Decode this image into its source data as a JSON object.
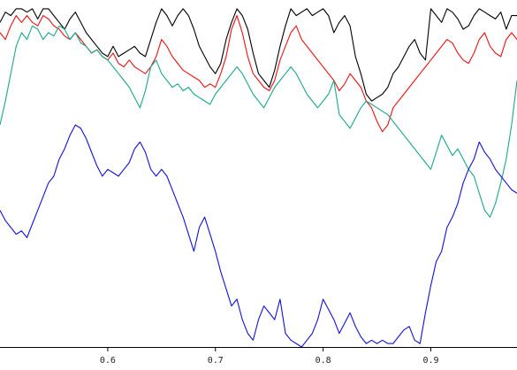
{
  "chart_data": {
    "type": "line",
    "title": "",
    "xlabel": "",
    "ylabel": "",
    "xlim": [
      0.5,
      0.98
    ],
    "ylim": [
      0.0,
      1.0
    ],
    "x_ticks": [
      0.6,
      0.7,
      0.8,
      0.9
    ],
    "x_tick_labels": [
      "0.6",
      "0.7",
      "0.8",
      "0.9"
    ],
    "grid": false,
    "legend": "none",
    "series": [
      {
        "color": "#000000",
        "x": [
          0.5,
          0.505,
          0.51,
          0.515,
          0.52,
          0.525,
          0.53,
          0.535,
          0.54,
          0.545,
          0.55,
          0.555,
          0.56,
          0.565,
          0.57,
          0.575,
          0.58,
          0.585,
          0.59,
          0.595,
          0.6,
          0.605,
          0.61,
          0.615,
          0.62,
          0.625,
          0.63,
          0.635,
          0.64,
          0.645,
          0.65,
          0.655,
          0.66,
          0.665,
          0.67,
          0.675,
          0.68,
          0.685,
          0.69,
          0.695,
          0.7,
          0.705,
          0.71,
          0.715,
          0.72,
          0.725,
          0.73,
          0.735,
          0.74,
          0.745,
          0.75,
          0.755,
          0.76,
          0.765,
          0.77,
          0.775,
          0.78,
          0.785,
          0.79,
          0.795,
          0.8,
          0.805,
          0.81,
          0.815,
          0.82,
          0.825,
          0.83,
          0.835,
          0.84,
          0.845,
          0.85,
          0.855,
          0.86,
          0.865,
          0.87,
          0.875,
          0.88,
          0.885,
          0.89,
          0.895,
          0.9,
          0.905,
          0.91,
          0.915,
          0.92,
          0.925,
          0.93,
          0.935,
          0.94,
          0.945,
          0.95,
          0.955,
          0.96,
          0.965,
          0.97,
          0.975,
          0.98
        ],
        "values": [
          0.95,
          0.98,
          0.97,
          0.99,
          0.99,
          0.98,
          0.99,
          0.96,
          0.99,
          0.99,
          0.97,
          0.95,
          0.93,
          0.96,
          0.98,
          0.95,
          0.92,
          0.9,
          0.88,
          0.86,
          0.85,
          0.88,
          0.85,
          0.86,
          0.87,
          0.88,
          0.86,
          0.85,
          0.9,
          0.95,
          0.99,
          0.97,
          0.94,
          0.97,
          0.99,
          0.97,
          0.93,
          0.88,
          0.85,
          0.82,
          0.8,
          0.83,
          0.9,
          0.95,
          0.99,
          0.97,
          0.93,
          0.86,
          0.8,
          0.78,
          0.76,
          0.81,
          0.88,
          0.94,
          0.99,
          0.97,
          0.98,
          0.99,
          0.97,
          0.98,
          0.99,
          0.97,
          0.92,
          0.95,
          0.97,
          0.94,
          0.85,
          0.8,
          0.74,
          0.72,
          0.73,
          0.74,
          0.76,
          0.8,
          0.82,
          0.85,
          0.88,
          0.9,
          0.86,
          0.84,
          0.99,
          0.97,
          0.95,
          0.99,
          0.98,
          0.96,
          0.93,
          0.94,
          0.97,
          0.99,
          0.98,
          0.97,
          0.96,
          0.98,
          0.93,
          0.97,
          0.97
        ]
      },
      {
        "color": "#ee1111",
        "x": [
          0.5,
          0.505,
          0.51,
          0.515,
          0.52,
          0.525,
          0.53,
          0.535,
          0.54,
          0.545,
          0.55,
          0.555,
          0.56,
          0.565,
          0.57,
          0.575,
          0.58,
          0.585,
          0.59,
          0.595,
          0.6,
          0.605,
          0.61,
          0.615,
          0.62,
          0.625,
          0.63,
          0.635,
          0.64,
          0.645,
          0.65,
          0.655,
          0.66,
          0.665,
          0.67,
          0.675,
          0.68,
          0.685,
          0.69,
          0.695,
          0.7,
          0.705,
          0.71,
          0.715,
          0.72,
          0.725,
          0.73,
          0.735,
          0.74,
          0.745,
          0.75,
          0.755,
          0.76,
          0.765,
          0.77,
          0.775,
          0.78,
          0.785,
          0.79,
          0.795,
          0.8,
          0.805,
          0.81,
          0.815,
          0.82,
          0.825,
          0.83,
          0.835,
          0.84,
          0.845,
          0.85,
          0.855,
          0.86,
          0.865,
          0.87,
          0.875,
          0.88,
          0.885,
          0.89,
          0.895,
          0.9,
          0.905,
          0.91,
          0.915,
          0.92,
          0.925,
          0.93,
          0.935,
          0.94,
          0.945,
          0.95,
          0.955,
          0.96,
          0.965,
          0.97,
          0.975,
          0.98
        ],
        "values": [
          0.92,
          0.9,
          0.94,
          0.97,
          0.95,
          0.97,
          0.95,
          0.94,
          0.97,
          0.96,
          0.94,
          0.93,
          0.91,
          0.9,
          0.92,
          0.9,
          0.88,
          0.86,
          0.87,
          0.85,
          0.84,
          0.86,
          0.83,
          0.82,
          0.84,
          0.82,
          0.81,
          0.8,
          0.82,
          0.85,
          0.9,
          0.88,
          0.85,
          0.83,
          0.81,
          0.8,
          0.79,
          0.78,
          0.76,
          0.77,
          0.76,
          0.8,
          0.85,
          0.93,
          0.97,
          0.92,
          0.85,
          0.8,
          0.78,
          0.76,
          0.75,
          0.78,
          0.84,
          0.88,
          0.92,
          0.94,
          0.9,
          0.88,
          0.86,
          0.84,
          0.82,
          0.8,
          0.78,
          0.75,
          0.77,
          0.8,
          0.78,
          0.76,
          0.72,
          0.7,
          0.66,
          0.63,
          0.65,
          0.7,
          0.72,
          0.74,
          0.76,
          0.78,
          0.8,
          0.82,
          0.84,
          0.86,
          0.88,
          0.9,
          0.89,
          0.86,
          0.84,
          0.83,
          0.86,
          0.9,
          0.92,
          0.88,
          0.86,
          0.85,
          0.9,
          0.92,
          0.9
        ]
      },
      {
        "color": "#18a88a",
        "x": [
          0.5,
          0.505,
          0.51,
          0.515,
          0.52,
          0.525,
          0.53,
          0.535,
          0.54,
          0.545,
          0.55,
          0.555,
          0.56,
          0.565,
          0.57,
          0.575,
          0.58,
          0.585,
          0.59,
          0.595,
          0.6,
          0.605,
          0.61,
          0.615,
          0.62,
          0.625,
          0.63,
          0.635,
          0.64,
          0.645,
          0.65,
          0.655,
          0.66,
          0.665,
          0.67,
          0.675,
          0.68,
          0.685,
          0.69,
          0.695,
          0.7,
          0.705,
          0.71,
          0.715,
          0.72,
          0.725,
          0.73,
          0.735,
          0.74,
          0.745,
          0.75,
          0.755,
          0.76,
          0.765,
          0.77,
          0.775,
          0.78,
          0.785,
          0.79,
          0.795,
          0.8,
          0.805,
          0.81,
          0.815,
          0.82,
          0.825,
          0.83,
          0.835,
          0.84,
          0.845,
          0.85,
          0.855,
          0.86,
          0.865,
          0.87,
          0.875,
          0.88,
          0.885,
          0.89,
          0.895,
          0.9,
          0.905,
          0.91,
          0.915,
          0.92,
          0.925,
          0.93,
          0.935,
          0.94,
          0.945,
          0.95,
          0.955,
          0.96,
          0.965,
          0.97,
          0.975,
          0.98
        ],
        "values": [
          0.65,
          0.72,
          0.8,
          0.88,
          0.92,
          0.9,
          0.94,
          0.93,
          0.9,
          0.92,
          0.91,
          0.94,
          0.93,
          0.9,
          0.92,
          0.89,
          0.88,
          0.86,
          0.87,
          0.85,
          0.84,
          0.82,
          0.8,
          0.78,
          0.76,
          0.73,
          0.7,
          0.75,
          0.82,
          0.84,
          0.8,
          0.78,
          0.76,
          0.77,
          0.75,
          0.76,
          0.74,
          0.73,
          0.72,
          0.71,
          0.74,
          0.76,
          0.78,
          0.8,
          0.82,
          0.8,
          0.77,
          0.74,
          0.72,
          0.7,
          0.73,
          0.76,
          0.78,
          0.8,
          0.82,
          0.8,
          0.77,
          0.74,
          0.72,
          0.7,
          0.72,
          0.74,
          0.78,
          0.68,
          0.66,
          0.64,
          0.67,
          0.7,
          0.72,
          0.71,
          0.7,
          0.69,
          0.68,
          0.66,
          0.64,
          0.62,
          0.6,
          0.58,
          0.56,
          0.54,
          0.52,
          0.57,
          0.62,
          0.59,
          0.56,
          0.58,
          0.55,
          0.52,
          0.5,
          0.45,
          0.4,
          0.38,
          0.42,
          0.48,
          0.55,
          0.65,
          0.78
        ]
      },
      {
        "color": "#1010dd",
        "x": [
          0.5,
          0.505,
          0.51,
          0.515,
          0.52,
          0.525,
          0.53,
          0.535,
          0.54,
          0.545,
          0.55,
          0.555,
          0.56,
          0.565,
          0.57,
          0.575,
          0.58,
          0.585,
          0.59,
          0.595,
          0.6,
          0.605,
          0.61,
          0.615,
          0.62,
          0.625,
          0.63,
          0.635,
          0.64,
          0.645,
          0.65,
          0.655,
          0.66,
          0.665,
          0.67,
          0.675,
          0.68,
          0.685,
          0.69,
          0.695,
          0.7,
          0.705,
          0.71,
          0.715,
          0.72,
          0.725,
          0.73,
          0.735,
          0.74,
          0.745,
          0.75,
          0.755,
          0.76,
          0.765,
          0.77,
          0.775,
          0.78,
          0.785,
          0.79,
          0.795,
          0.8,
          0.805,
          0.81,
          0.815,
          0.82,
          0.825,
          0.83,
          0.835,
          0.84,
          0.845,
          0.85,
          0.855,
          0.86,
          0.865,
          0.87,
          0.875,
          0.88,
          0.885,
          0.89,
          0.895,
          0.9,
          0.905,
          0.91,
          0.915,
          0.92,
          0.925,
          0.93,
          0.935,
          0.94,
          0.945,
          0.95,
          0.955,
          0.96,
          0.965,
          0.97,
          0.975,
          0.98
        ],
        "values": [
          0.4,
          0.37,
          0.35,
          0.33,
          0.34,
          0.32,
          0.36,
          0.4,
          0.44,
          0.48,
          0.5,
          0.55,
          0.58,
          0.62,
          0.65,
          0.64,
          0.61,
          0.57,
          0.53,
          0.5,
          0.52,
          0.51,
          0.5,
          0.52,
          0.54,
          0.58,
          0.6,
          0.57,
          0.52,
          0.5,
          0.52,
          0.5,
          0.46,
          0.42,
          0.38,
          0.33,
          0.28,
          0.35,
          0.38,
          0.33,
          0.28,
          0.22,
          0.17,
          0.12,
          0.14,
          0.08,
          0.04,
          0.02,
          0.08,
          0.12,
          0.1,
          0.08,
          0.14,
          0.04,
          0.02,
          0.01,
          0.0,
          0.02,
          0.04,
          0.08,
          0.14,
          0.11,
          0.08,
          0.04,
          0.07,
          0.1,
          0.06,
          0.03,
          0.01,
          0.02,
          0.01,
          0.02,
          0.01,
          0.01,
          0.03,
          0.05,
          0.06,
          0.02,
          0.01,
          0.1,
          0.18,
          0.25,
          0.28,
          0.35,
          0.38,
          0.42,
          0.48,
          0.52,
          0.55,
          0.6,
          0.57,
          0.55,
          0.52,
          0.5,
          0.48,
          0.46,
          0.45
        ]
      }
    ]
  }
}
